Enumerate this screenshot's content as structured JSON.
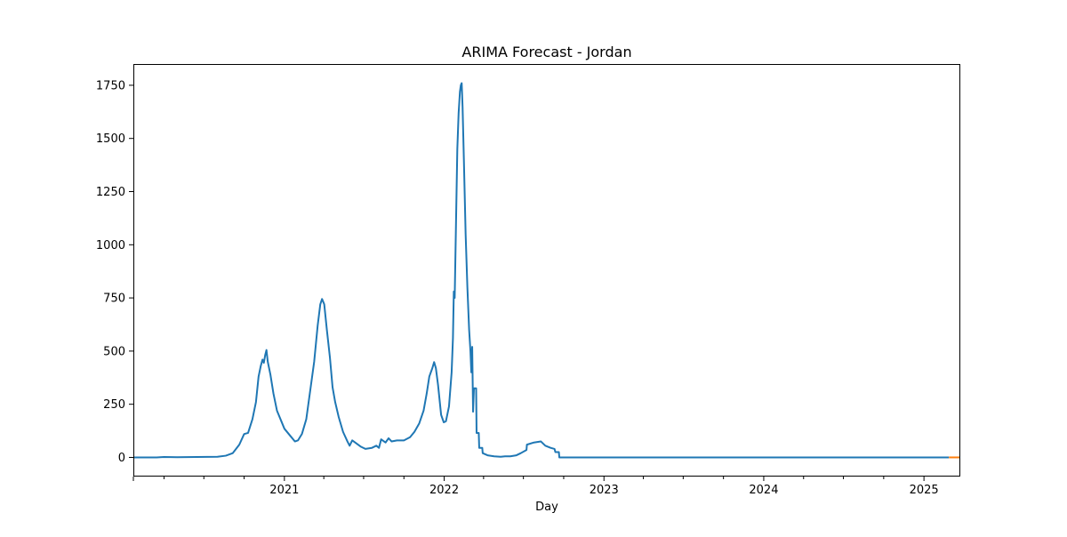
{
  "chart_data": {
    "type": "line",
    "title": "ARIMA Forecast - Jordan",
    "xlabel": "Day",
    "ylabel": "",
    "xlim": [
      "2020-01-22",
      "2025-03-25"
    ],
    "ylim": [
      -90,
      1850
    ],
    "xticks": [
      "2021",
      "2022",
      "2023",
      "2024",
      "2025"
    ],
    "yticks": [
      0,
      250,
      500,
      750,
      1000,
      1250,
      1500,
      1750
    ],
    "grid": false,
    "legend": "none",
    "colors": {
      "history": "#1f77b4",
      "forecast": "#ff7f0e",
      "axes": "#000000",
      "background": "#ffffff"
    },
    "series": [
      {
        "color": "#1f77b4",
        "points": [
          [
            "2020-01-22",
            0
          ],
          [
            "2020-03-15",
            0
          ],
          [
            "2020-04-01",
            2
          ],
          [
            "2020-05-01",
            1
          ],
          [
            "2020-06-15",
            2
          ],
          [
            "2020-08-01",
            3
          ],
          [
            "2020-08-20",
            8
          ],
          [
            "2020-09-05",
            20
          ],
          [
            "2020-09-20",
            60
          ],
          [
            "2020-10-01",
            110
          ],
          [
            "2020-10-10",
            115
          ],
          [
            "2020-10-20",
            180
          ],
          [
            "2020-10-28",
            260
          ],
          [
            "2020-11-03",
            380
          ],
          [
            "2020-11-08",
            430
          ],
          [
            "2020-11-12",
            460
          ],
          [
            "2020-11-15",
            445
          ],
          [
            "2020-11-18",
            480
          ],
          [
            "2020-11-21",
            505
          ],
          [
            "2020-11-24",
            450
          ],
          [
            "2020-11-30",
            390
          ],
          [
            "2020-12-07",
            300
          ],
          [
            "2020-12-15",
            220
          ],
          [
            "2020-12-25",
            170
          ],
          [
            "2021-01-01",
            135
          ],
          [
            "2021-01-15",
            100
          ],
          [
            "2021-01-25",
            75
          ],
          [
            "2021-02-01",
            80
          ],
          [
            "2021-02-10",
            110
          ],
          [
            "2021-02-20",
            180
          ],
          [
            "2021-02-28",
            300
          ],
          [
            "2021-03-10",
            450
          ],
          [
            "2021-03-18",
            620
          ],
          [
            "2021-03-24",
            720
          ],
          [
            "2021-03-28",
            745
          ],
          [
            "2021-04-02",
            720
          ],
          [
            "2021-04-08",
            600
          ],
          [
            "2021-04-15",
            470
          ],
          [
            "2021-04-21",
            330
          ],
          [
            "2021-04-27",
            260
          ],
          [
            "2021-05-05",
            190
          ],
          [
            "2021-05-15",
            120
          ],
          [
            "2021-05-25",
            75
          ],
          [
            "2021-05-30",
            55
          ],
          [
            "2021-06-05",
            80
          ],
          [
            "2021-06-15",
            65
          ],
          [
            "2021-06-25",
            50
          ],
          [
            "2021-07-05",
            40
          ],
          [
            "2021-07-20",
            45
          ],
          [
            "2021-07-30",
            55
          ],
          [
            "2021-08-05",
            45
          ],
          [
            "2021-08-10",
            85
          ],
          [
            "2021-08-20",
            70
          ],
          [
            "2021-08-27",
            90
          ],
          [
            "2021-09-03",
            75
          ],
          [
            "2021-09-15",
            80
          ],
          [
            "2021-10-01",
            80
          ],
          [
            "2021-10-15",
            95
          ],
          [
            "2021-10-25",
            120
          ],
          [
            "2021-11-05",
            160
          ],
          [
            "2021-11-15",
            220
          ],
          [
            "2021-11-22",
            300
          ],
          [
            "2021-11-28",
            380
          ],
          [
            "2021-12-05",
            420
          ],
          [
            "2021-12-09",
            448
          ],
          [
            "2021-12-13",
            420
          ],
          [
            "2021-12-18",
            340
          ],
          [
            "2021-12-25",
            200
          ],
          [
            "2021-12-31",
            165
          ],
          [
            "2022-01-05",
            170
          ],
          [
            "2022-01-12",
            240
          ],
          [
            "2022-01-18",
            400
          ],
          [
            "2022-01-21",
            560
          ],
          [
            "2022-01-23",
            780
          ],
          [
            "2022-01-25",
            750
          ],
          [
            "2022-01-28",
            1100
          ],
          [
            "2022-01-31",
            1450
          ],
          [
            "2022-02-03",
            1620
          ],
          [
            "2022-02-06",
            1720
          ],
          [
            "2022-02-08",
            1750
          ],
          [
            "2022-02-10",
            1760
          ],
          [
            "2022-02-12",
            1650
          ],
          [
            "2022-02-15",
            1400
          ],
          [
            "2022-02-19",
            1050
          ],
          [
            "2022-02-23",
            800
          ],
          [
            "2022-02-27",
            600
          ],
          [
            "2022-03-02",
            500
          ],
          [
            "2022-03-04",
            400
          ],
          [
            "2022-03-06",
            520
          ],
          [
            "2022-03-08",
            215
          ],
          [
            "2022-03-10",
            325
          ],
          [
            "2022-03-15",
            325
          ],
          [
            "2022-03-16",
            115
          ],
          [
            "2022-03-21",
            115
          ],
          [
            "2022-03-22",
            45
          ],
          [
            "2022-03-29",
            45
          ],
          [
            "2022-03-30",
            20
          ],
          [
            "2022-04-10",
            10
          ],
          [
            "2022-04-25",
            5
          ],
          [
            "2022-05-10",
            3
          ],
          [
            "2022-05-20",
            5
          ],
          [
            "2022-06-01",
            5
          ],
          [
            "2022-06-15",
            10
          ],
          [
            "2022-06-25",
            20
          ],
          [
            "2022-07-08",
            35
          ],
          [
            "2022-07-09",
            60
          ],
          [
            "2022-07-25",
            70
          ],
          [
            "2022-08-10",
            75
          ],
          [
            "2022-08-20",
            55
          ],
          [
            "2022-09-01",
            45
          ],
          [
            "2022-09-10",
            40
          ],
          [
            "2022-09-12",
            25
          ],
          [
            "2022-09-20",
            25
          ],
          [
            "2022-09-21",
            0
          ],
          [
            "2023-06-01",
            0
          ],
          [
            "2024-06-01",
            0
          ],
          [
            "2025-02-27",
            0
          ]
        ]
      },
      {
        "color": "#ff7f0e",
        "points": [
          [
            "2025-02-27",
            0
          ],
          [
            "2025-03-25",
            0
          ]
        ]
      }
    ]
  }
}
